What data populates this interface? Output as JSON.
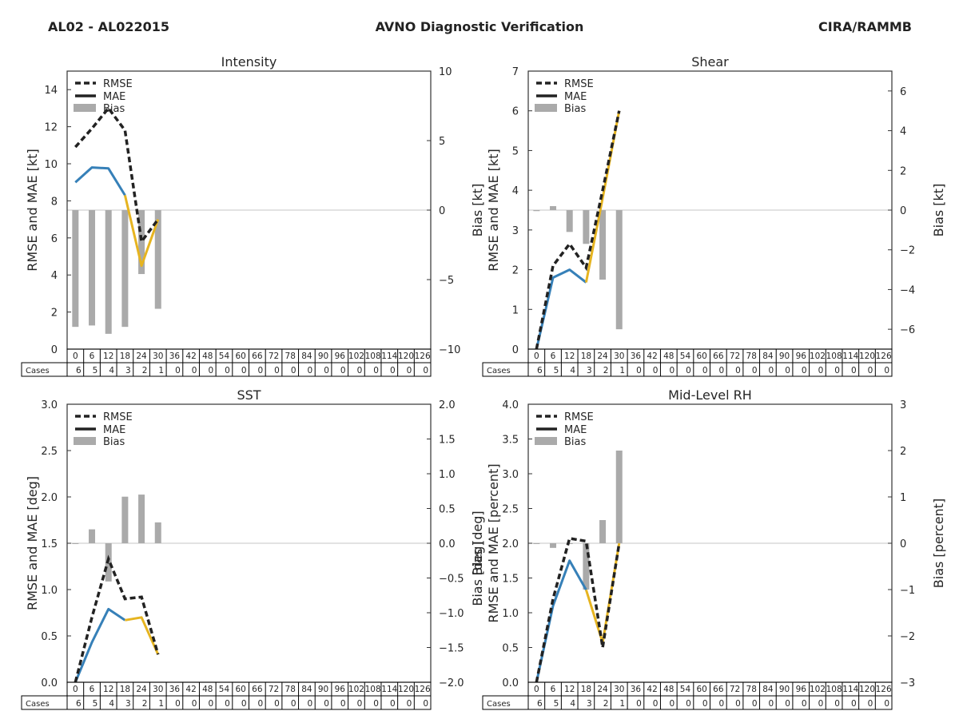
{
  "header": {
    "left": "AL02 - AL022015",
    "center": "AVNO Diagnostic Verification",
    "right": "CIRA/RAMMB"
  },
  "legend_labels": [
    "RMSE",
    "MAE",
    "Bias"
  ],
  "table_row_label": "Cases",
  "chart_data": [
    {
      "type": "line",
      "title": "Intensity",
      "ylabel": "RMSE and MAE [kt]",
      "ylabel2": "Bias [kt]",
      "ylim": [
        0,
        15
      ],
      "yticks": [
        "0",
        "2",
        "4",
        "6",
        "8",
        "10",
        "12",
        "14"
      ],
      "ytick_values": [
        0,
        2,
        4,
        6,
        8,
        10,
        12,
        14
      ],
      "y2lim": [
        -10,
        10
      ],
      "y2ticks": [
        "−10",
        "−5",
        "0",
        "5",
        "10"
      ],
      "y2tick_values": [
        -10,
        -5,
        0,
        5,
        10
      ],
      "x": [
        0,
        6,
        12,
        18,
        24,
        30
      ],
      "rmse": [
        10.9,
        11.9,
        13.0,
        11.8,
        5.8,
        7.0
      ],
      "mae": [
        9.0,
        9.8,
        9.75,
        8.3,
        4.5,
        7.0
      ],
      "bias": [
        -8.4,
        -8.3,
        -8.9,
        -8.4,
        -4.6,
        -7.1
      ],
      "colored_from_index": 3,
      "lead_times": [
        "0",
        "6",
        "12",
        "18",
        "24",
        "30",
        "36",
        "42",
        "48",
        "54",
        "60",
        "66",
        "72",
        "78",
        "84",
        "90",
        "96",
        "102",
        "108",
        "114",
        "120",
        "126"
      ],
      "cases": [
        "6",
        "5",
        "4",
        "3",
        "2",
        "1",
        "0",
        "0",
        "0",
        "0",
        "0",
        "0",
        "0",
        "0",
        "0",
        "0",
        "0",
        "0",
        "0",
        "0",
        "0",
        "0"
      ]
    },
    {
      "type": "line",
      "title": "Shear",
      "ylabel": "RMSE and MAE [kt]",
      "ylabel2": "Bias [kt]",
      "ylim": [
        0,
        7
      ],
      "yticks": [
        "0",
        "1",
        "2",
        "3",
        "4",
        "5",
        "6",
        "7"
      ],
      "ytick_values": [
        0,
        1,
        2,
        3,
        4,
        5,
        6,
        7
      ],
      "y2lim": [
        -7,
        7
      ],
      "y2ticks": [
        "−6",
        "−4",
        "−2",
        "0",
        "2",
        "4",
        "6"
      ],
      "y2tick_values": [
        -6,
        -4,
        -2,
        0,
        2,
        4,
        6
      ],
      "x": [
        0,
        6,
        12,
        18,
        24,
        30
      ],
      "rmse": [
        0.0,
        2.1,
        2.65,
        2.05,
        4.0,
        6.0
      ],
      "mae": [
        0.0,
        1.8,
        2.0,
        1.68,
        3.8,
        6.0
      ],
      "bias": [
        -0.05,
        0.2,
        -1.1,
        -1.7,
        -3.5,
        -6.0
      ],
      "colored_from_index": 3,
      "lead_times": [
        "0",
        "6",
        "12",
        "18",
        "24",
        "30",
        "36",
        "42",
        "48",
        "54",
        "60",
        "66",
        "72",
        "78",
        "84",
        "90",
        "96",
        "102",
        "108",
        "114",
        "120",
        "126"
      ],
      "cases": [
        "6",
        "5",
        "4",
        "3",
        "2",
        "1",
        "0",
        "0",
        "0",
        "0",
        "0",
        "0",
        "0",
        "0",
        "0",
        "0",
        "0",
        "0",
        "0",
        "0",
        "0",
        "0"
      ]
    },
    {
      "type": "line",
      "title": "SST",
      "ylabel": "RMSE and MAE [deg]",
      "ylabel2": "Bias [deg]",
      "ylim": [
        0,
        3
      ],
      "yticks": [
        "0.0",
        "0.5",
        "1.0",
        "1.5",
        "2.0",
        "2.5",
        "3.0"
      ],
      "ytick_values": [
        0,
        0.5,
        1.0,
        1.5,
        2.0,
        2.5,
        3.0
      ],
      "y2lim": [
        -2,
        2
      ],
      "y2ticks": [
        "−2.0",
        "−1.5",
        "−1.0",
        "−0.5",
        "0.0",
        "0.5",
        "1.0",
        "1.5",
        "2.0"
      ],
      "y2tick_values": [
        -2,
        -1.5,
        -1,
        -0.5,
        0,
        0.5,
        1,
        1.5,
        2
      ],
      "x": [
        0,
        6,
        12,
        18,
        24,
        30
      ],
      "rmse": [
        0.0,
        0.7,
        1.33,
        0.9,
        0.92,
        0.3
      ],
      "mae": [
        0.0,
        0.43,
        0.79,
        0.67,
        0.7,
        0.3
      ],
      "bias": [
        0.0,
        0.2,
        -0.55,
        0.67,
        0.7,
        0.3
      ],
      "colored_from_index": 3,
      "lead_times": [
        "0",
        "6",
        "12",
        "18",
        "24",
        "30",
        "36",
        "42",
        "48",
        "54",
        "60",
        "66",
        "72",
        "78",
        "84",
        "90",
        "96",
        "102",
        "108",
        "114",
        "120",
        "126"
      ],
      "cases": [
        "6",
        "5",
        "4",
        "3",
        "2",
        "1",
        "0",
        "0",
        "0",
        "0",
        "0",
        "0",
        "0",
        "0",
        "0",
        "0",
        "0",
        "0",
        "0",
        "0",
        "0",
        "0"
      ]
    },
    {
      "type": "line",
      "title": "Mid-Level RH",
      "ylabel": "RMSE and MAE [percent]",
      "ylabel2": "Bias [percent]",
      "ylabel_overlay": "Bias [deg]",
      "ylim": [
        0,
        4
      ],
      "yticks": [
        "0.0",
        "0.5",
        "1.0",
        "1.5",
        "2.0",
        "2.5",
        "3.0",
        "3.5",
        "4.0"
      ],
      "ytick_values": [
        0,
        0.5,
        1,
        1.5,
        2,
        2.5,
        3,
        3.5,
        4
      ],
      "y2lim": [
        -3,
        3
      ],
      "y2ticks": [
        "−3",
        "−2",
        "−1",
        "0",
        "1",
        "2",
        "3"
      ],
      "y2tick_values": [
        -3,
        -2,
        -1,
        0,
        1,
        2,
        3
      ],
      "x": [
        0,
        6,
        12,
        18,
        24,
        30
      ],
      "rmse": [
        0.0,
        1.2,
        2.07,
        2.03,
        0.5,
        2.0
      ],
      "mae": [
        0.0,
        1.1,
        1.75,
        1.33,
        0.57,
        2.0
      ],
      "bias": [
        0.0,
        -0.1,
        0.0,
        -1.0,
        0.5,
        2.0
      ],
      "colored_from_index": 3,
      "lead_times": [
        "0",
        "6",
        "12",
        "18",
        "24",
        "30",
        "36",
        "42",
        "48",
        "54",
        "60",
        "66",
        "72",
        "78",
        "84",
        "90",
        "96",
        "102",
        "108",
        "114",
        "120",
        "126"
      ],
      "cases": [
        "6",
        "5",
        "4",
        "3",
        "2",
        "1",
        "0",
        "0",
        "0",
        "0",
        "0",
        "0",
        "0",
        "0",
        "0",
        "0",
        "0",
        "0",
        "0",
        "0",
        "0",
        "0"
      ]
    }
  ]
}
